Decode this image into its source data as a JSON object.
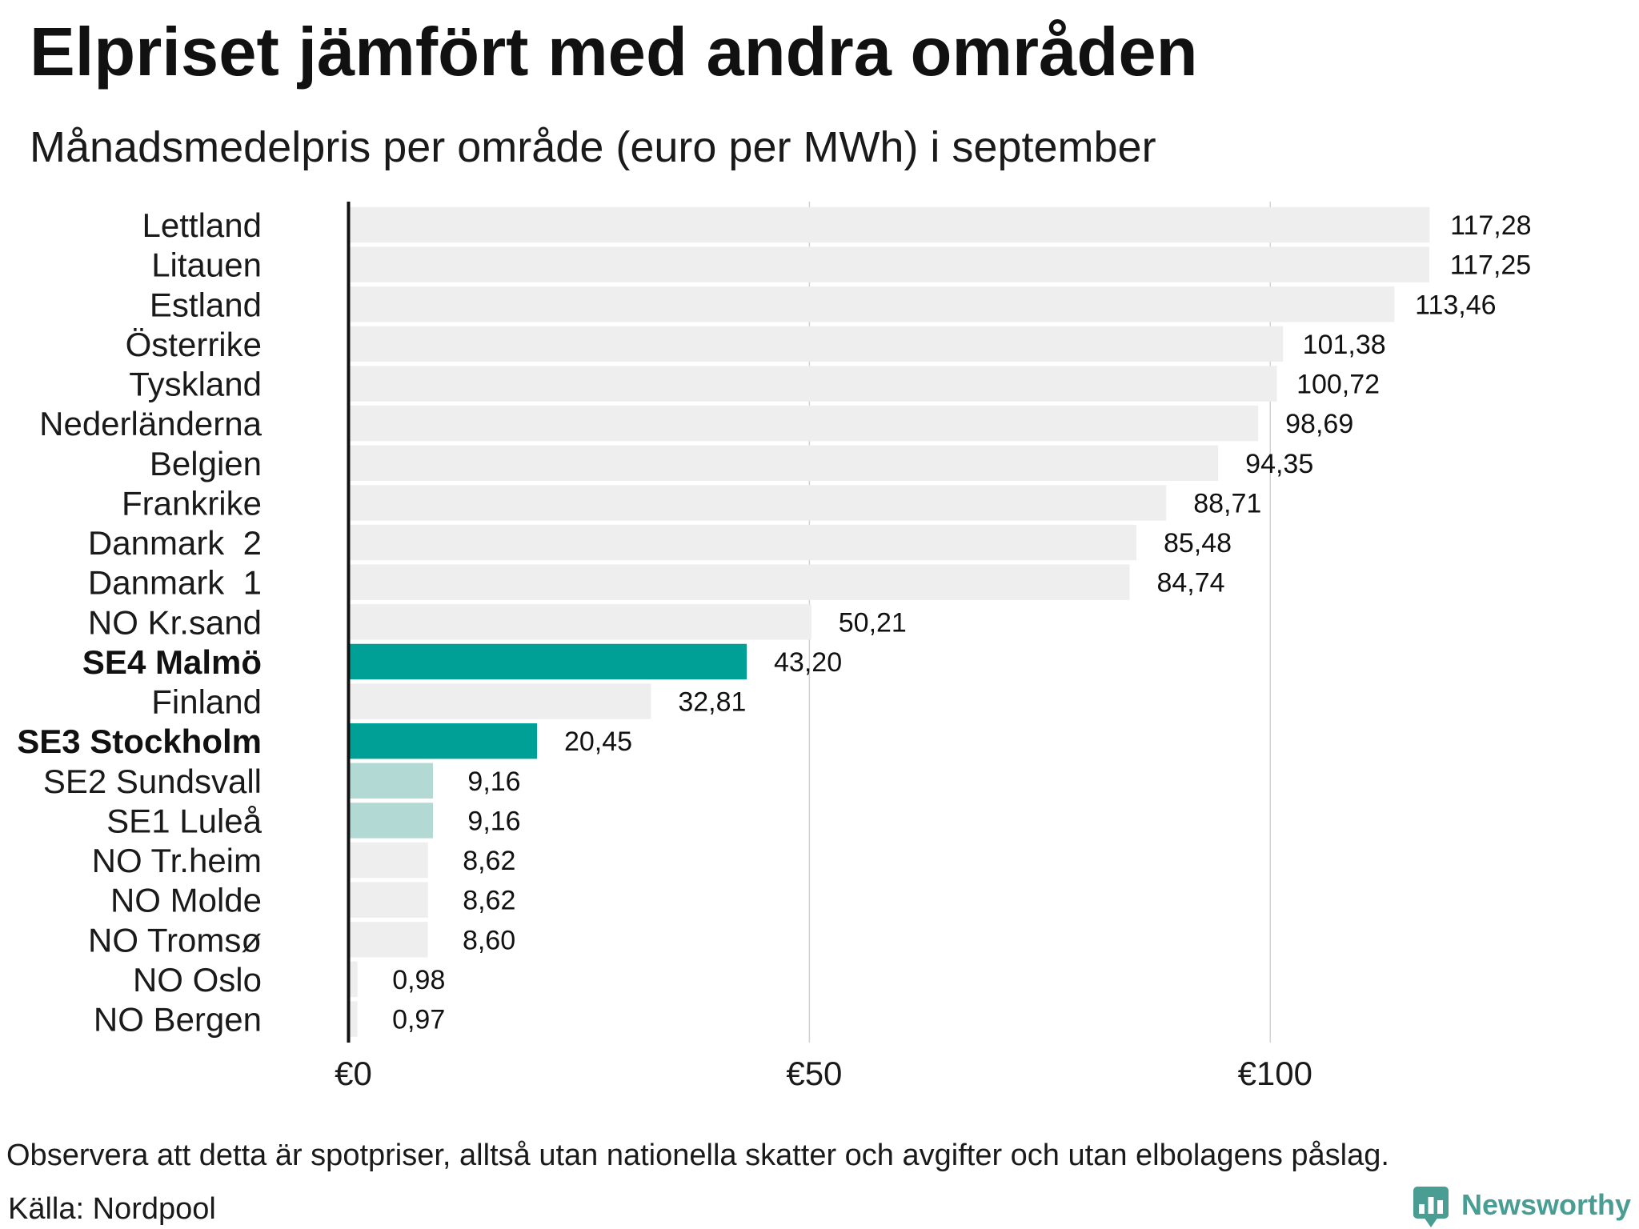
{
  "chart_data": {
    "type": "bar",
    "orientation": "horizontal",
    "title": "Elpriset jämfört med andra områden",
    "subtitle": "Månadsmedelpris per område (euro per MWh) i september",
    "categories": [
      "Lettland",
      "Litauen",
      "Estland",
      "Österrike",
      "Tyskland",
      "Nederländerna",
      "Belgien",
      "Frankrike",
      "Danmark  2",
      "Danmark  1",
      "NO Kr.sand",
      "SE4 Malmö",
      "Finland",
      "SE3 Stockholm",
      "SE2 Sundsvall",
      "SE1 Luleå",
      "NO Tr.heim",
      "NO Molde",
      "NO Tromsø",
      "NO Oslo",
      "NO Bergen"
    ],
    "values": [
      117.28,
      117.25,
      113.46,
      101.38,
      100.72,
      98.69,
      94.35,
      88.71,
      85.48,
      84.74,
      50.21,
      43.2,
      32.81,
      20.45,
      9.16,
      9.16,
      8.62,
      8.62,
      8.6,
      0.98,
      0.97
    ],
    "data_labels": [
      "117,28",
      "117,25",
      "113,46",
      "101,38",
      "100,72",
      "98,69",
      "94,35",
      "88,71",
      "85,48",
      "84,74",
      "50,21",
      "43,20",
      "32,81",
      "20,45",
      "9,16",
      "9,16",
      "8,62",
      "8,62",
      "8,60",
      "0,98",
      "0,97"
    ],
    "bar_colors": [
      "#eeeeee",
      "#eeeeee",
      "#eeeeee",
      "#eeeeee",
      "#eeeeee",
      "#eeeeee",
      "#eeeeee",
      "#eeeeee",
      "#eeeeee",
      "#eeeeee",
      "#eeeeee",
      "#00a096",
      "#eeeeee",
      "#00a096",
      "#b3d9d5",
      "#b3d9d5",
      "#eeeeee",
      "#eeeeee",
      "#eeeeee",
      "#eeeeee",
      "#eeeeee"
    ],
    "bold_categories": [
      "SE4 Malmö",
      "SE3 Stockholm"
    ],
    "xlim": [
      0,
      140
    ],
    "xticks": [
      0,
      50,
      100
    ],
    "xtick_labels": [
      "€0",
      "€50",
      "€100"
    ],
    "grid": "vertical"
  },
  "footer": {
    "note": "Observera att detta är spotpriser, alltså utan nationella skatter och avgifter och utan elbolagens påslag.",
    "source": "Källa: Nordpool"
  },
  "branding": {
    "logo_text": "Newsworthy",
    "logo_icon": "bar-chart-speech-bubble-icon",
    "color": "#4a9d92"
  }
}
